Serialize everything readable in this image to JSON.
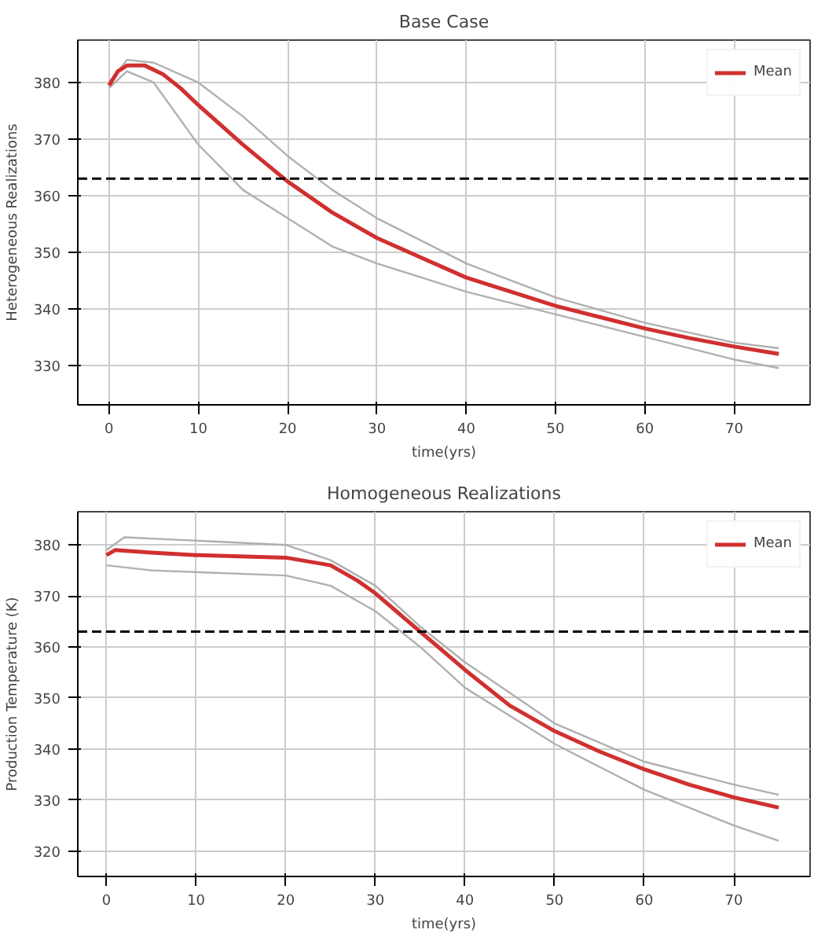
{
  "chart_data": [
    {
      "type": "line",
      "title": "Base Case",
      "xlabel": "time(yrs)",
      "ylabel": "Heterogeneous Realizations",
      "xlim": [
        -3.5,
        78.5
      ],
      "ylim": [
        323,
        387.5
      ],
      "xticks": [
        0,
        10,
        20,
        30,
        40,
        50,
        60,
        70
      ],
      "yticks": [
        330,
        340,
        350,
        360,
        370,
        380
      ],
      "grid": true,
      "legend": "top right",
      "ref_lines": [
        {
          "axis": "y",
          "value": 363,
          "line_style": "dashed",
          "color": "#000000"
        }
      ],
      "series": [
        {
          "color": "#b0b0b0",
          "x": [
            0,
            2,
            5,
            10,
            15,
            20,
            25,
            30,
            40,
            50,
            60,
            70,
            75
          ],
          "values": [
            380,
            384,
            383.5,
            380,
            374,
            367,
            361,
            356,
            348,
            342,
            337.5,
            334,
            333
          ]
        },
        {
          "color": "#b0b0b0",
          "x": [
            0,
            2,
            5,
            10,
            15,
            20,
            25,
            30,
            40,
            50,
            60,
            70,
            75
          ],
          "values": [
            379,
            382,
            380,
            369,
            361,
            356,
            351,
            348,
            343,
            339,
            335,
            331,
            329.5
          ]
        },
        {
          "name": "Mean",
          "color": "#d03030",
          "x": [
            0,
            1,
            2,
            4,
            6,
            8,
            10,
            15,
            20,
            25,
            30,
            35,
            40,
            45,
            50,
            55,
            60,
            65,
            70,
            75
          ],
          "values": [
            379.5,
            382,
            383,
            383,
            381.5,
            379,
            376,
            369,
            362.5,
            357,
            352.5,
            349,
            345.5,
            343,
            340.5,
            338.5,
            336.5,
            334.8,
            333.3,
            332
          ]
        }
      ]
    },
    {
      "type": "line",
      "title": "Homogeneous Realizations",
      "xlabel": "time(yrs)",
      "ylabel": "Production Temperature (K)",
      "xlim": [
        -3.2,
        78.5
      ],
      "ylim": [
        315,
        386.5
      ],
      "xticks": [
        0,
        10,
        20,
        30,
        40,
        50,
        60,
        70
      ],
      "yticks": [
        320,
        330,
        340,
        350,
        360,
        370,
        380
      ],
      "grid": true,
      "legend": "top right",
      "ref_lines": [
        {
          "axis": "y",
          "value": 363,
          "line_style": "dashed",
          "color": "#000000"
        }
      ],
      "series": [
        {
          "color": "#b0b0b0",
          "x": [
            0,
            2,
            20,
            25,
            30,
            35,
            40,
            50,
            60,
            70,
            75
          ],
          "values": [
            379,
            381.5,
            380,
            377,
            372,
            364,
            357,
            345,
            337.5,
            333,
            331
          ]
        },
        {
          "color": "#b0b0b0",
          "x": [
            0,
            5,
            20,
            25,
            30,
            35,
            40,
            50,
            60,
            70,
            75
          ],
          "values": [
            376,
            375,
            374,
            372,
            367,
            360,
            352,
            341,
            332,
            325,
            322
          ]
        },
        {
          "name": "Mean",
          "color": "#d03030",
          "x": [
            0,
            1,
            5,
            10,
            20,
            25,
            28,
            30,
            33,
            35,
            38,
            40,
            45,
            50,
            55,
            60,
            65,
            70,
            75
          ],
          "values": [
            378,
            379,
            378.5,
            378,
            377.5,
            376,
            373,
            370.5,
            366,
            363,
            358.5,
            355.5,
            348.5,
            343.5,
            339.5,
            336,
            333,
            330.5,
            328.5
          ]
        }
      ]
    }
  ]
}
